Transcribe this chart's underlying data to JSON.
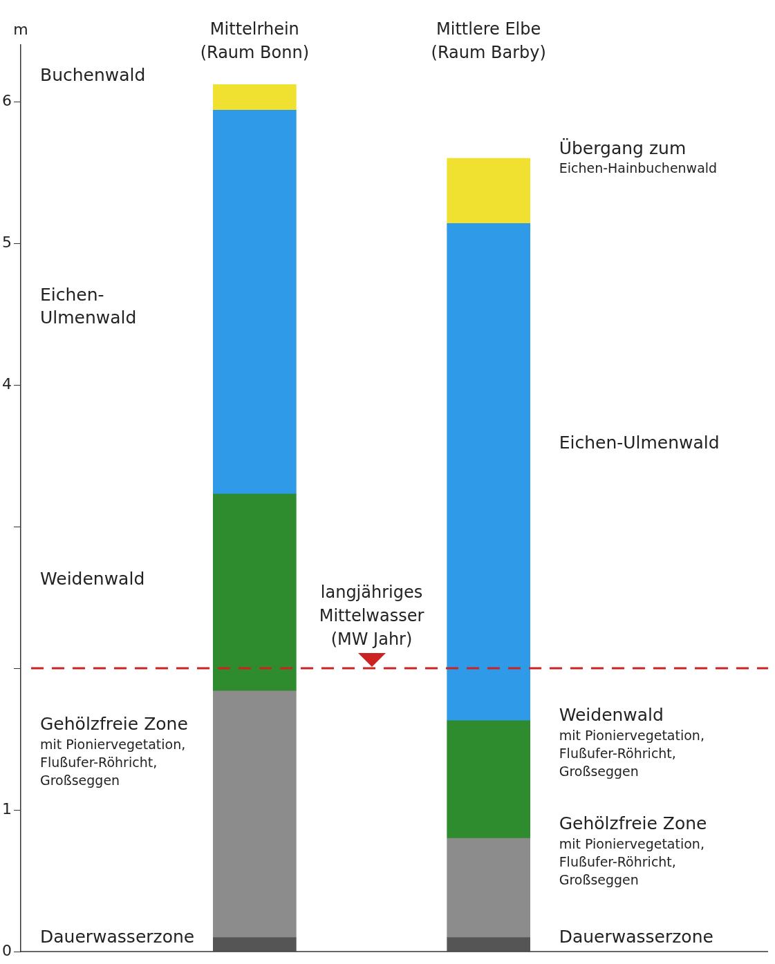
{
  "chart_data": {
    "type": "bar",
    "stacked": true,
    "ylabel": "m",
    "categories": [
      "Mittelrhein\n(Raum Bonn)",
      "Mittlere Elbe\n(Raum Barby)"
    ],
    "series": [
      {
        "color": "#555555",
        "values": [
          0.1,
          0.1
        ]
      },
      {
        "color": "#8c8c8c",
        "values": [
          1.74,
          0.7
        ]
      },
      {
        "color": "#2e8b2e",
        "values": [
          1.39,
          0.83
        ]
      },
      {
        "color": "#2f9be8",
        "values": [
          2.71,
          3.51
        ]
      },
      {
        "color": "#f0e030",
        "values": [
          0.18,
          0.46
        ]
      }
    ],
    "ylim": [
      0,
      6.4
    ],
    "yticks": [
      0,
      1,
      {
        "value": 2,
        "label": null
      },
      {
        "value": 3,
        "label": null
      },
      4,
      5,
      6
    ],
    "grid": false,
    "legend": false,
    "ref_lines": [
      {
        "axis": "y",
        "value": 2.0,
        "label": "langjähriges\nMittelwasser\n(MW Jahr)",
        "color": "#cc2222",
        "line_style": "dashed"
      }
    ],
    "annotations": [
      "Buchenwald",
      "Eichen-\nUlmenwald",
      "Weidenwald",
      "Gehölzfreie Zone\nmit Pioniervegetation,\nFlußufer-Röhricht,\nGroßseggen",
      "Dauerwasserzone",
      "Übergang zum\nEichen-Hainbuchenwald",
      "Eichen-Ulmenwald",
      "Weidenwald\nmit Pioniervegetation,\nFlußufer-Röhricht,\nGroßseggen",
      "Gehölzfreie Zone\nmit Pioniervegetation,\nFlußufer-Röhricht,\nGroßseggen",
      "Dauerwasserzone"
    ]
  }
}
